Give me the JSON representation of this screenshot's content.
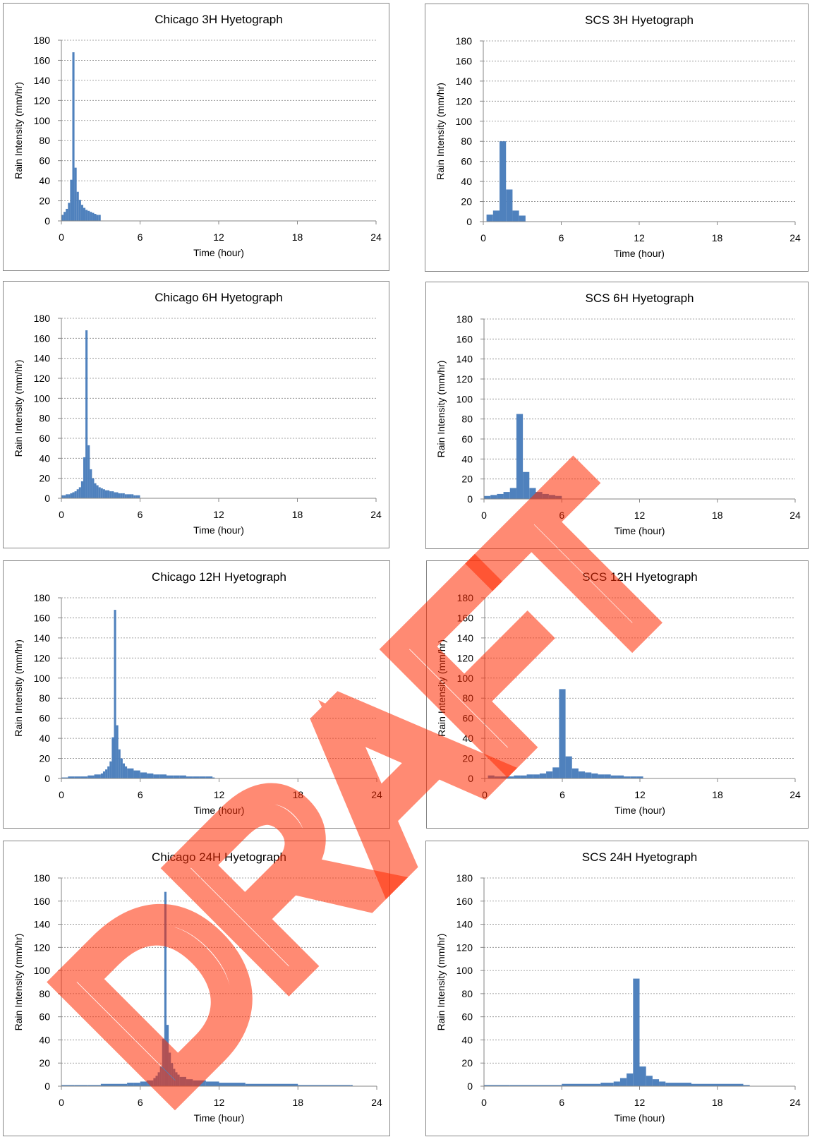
{
  "watermark": "DRAFT",
  "colors": {
    "bar": "#4F81BD",
    "grid": "#878787",
    "axis": "#868686",
    "watermark": "#ff2a00"
  },
  "chart_data": [
    {
      "type": "bar",
      "title": "Chicago 3H Hyetograph",
      "xlabel": "Time (hour)",
      "ylabel": "Rain Intensity (mm/hr)",
      "xlim": [
        0,
        24
      ],
      "ylim": [
        0,
        180
      ],
      "xticks": [
        0,
        6,
        12,
        18,
        24
      ],
      "yticks": [
        0,
        20,
        40,
        60,
        80,
        100,
        120,
        140,
        160,
        180
      ],
      "grid": "y-dashed",
      "step_hours": 0.1667,
      "x_start": [
        0,
        0.1667,
        0.3333,
        0.5,
        0.6667,
        0.8333,
        1.0,
        1.1667,
        1.3333,
        1.5,
        1.6667,
        1.8333,
        2.0,
        2.1667,
        2.3333,
        2.5,
        2.6667,
        2.8333
      ],
      "values": [
        6,
        9,
        12,
        18,
        41,
        168,
        53,
        29,
        21,
        16,
        13,
        11,
        10,
        9,
        8,
        7,
        6,
        6
      ]
    },
    {
      "type": "bar",
      "title": "SCS 3H Hyetograph",
      "xlabel": "Time (hour)",
      "ylabel": "Rain Intensity (mm/hr)",
      "xlim": [
        0,
        24
      ],
      "ylim": [
        0,
        180
      ],
      "xticks": [
        0,
        6,
        12,
        18,
        24
      ],
      "yticks": [
        0,
        20,
        40,
        60,
        80,
        100,
        120,
        140,
        160,
        180
      ],
      "grid": "y-dashed",
      "step_hours": 0.5,
      "x_start": [
        0.25,
        0.75,
        1.25,
        1.75,
        2.25,
        2.75
      ],
      "values": [
        7,
        11,
        80,
        32,
        11,
        6
      ]
    },
    {
      "type": "bar",
      "title": "Chicago 6H Hyetograph",
      "xlabel": "Time (hour)",
      "ylabel": "Rain Intensity (mm/hr)",
      "xlim": [
        0,
        24
      ],
      "ylim": [
        0,
        180
      ],
      "xticks": [
        0,
        6,
        12,
        18,
        24
      ],
      "yticks": [
        0,
        20,
        40,
        60,
        80,
        100,
        120,
        140,
        160,
        180
      ],
      "grid": "y-dashed",
      "step_hours": 0.1667,
      "x_start": [
        0,
        0.1667,
        0.3333,
        0.5,
        0.6667,
        0.8333,
        1.0,
        1.1667,
        1.3333,
        1.5,
        1.6667,
        1.8333,
        2.0,
        2.1667,
        2.3333,
        2.5,
        2.6667,
        2.8333,
        3.0,
        3.1667,
        3.3333,
        3.5,
        3.6667,
        3.8333,
        4.0,
        4.1667,
        4.3333,
        4.5,
        4.6667,
        4.8333,
        5.0,
        5.1667,
        5.3333,
        5.5,
        5.6667,
        5.8333
      ],
      "values": [
        3,
        3,
        4,
        4,
        5,
        6,
        7,
        9,
        11,
        17,
        41,
        168,
        53,
        29,
        20,
        15,
        13,
        11,
        10,
        9,
        8,
        8,
        7,
        7,
        6,
        6,
        5,
        5,
        5,
        4,
        4,
        4,
        4,
        3,
        3,
        3
      ]
    },
    {
      "type": "bar",
      "title": "SCS 6H Hyetograph",
      "xlabel": "Time (hour)",
      "ylabel": "Rain Intensity (mm/hr)",
      "xlim": [
        0,
        24
      ],
      "ylim": [
        0,
        180
      ],
      "xticks": [
        0,
        6,
        12,
        18,
        24
      ],
      "yticks": [
        0,
        20,
        40,
        60,
        80,
        100,
        120,
        140,
        160,
        180
      ],
      "grid": "y-dashed",
      "step_hours": 0.5,
      "x_start": [
        0,
        0.5,
        1.0,
        1.5,
        2.0,
        2.5,
        3.0,
        3.5,
        4.0,
        4.5,
        5.0,
        5.5
      ],
      "values": [
        3,
        4,
        5,
        7,
        11,
        85,
        27,
        11,
        7,
        5,
        4,
        3
      ]
    },
    {
      "type": "bar",
      "title": "Chicago 12H Hyetograph",
      "xlabel": "Time (hour)",
      "ylabel": "Rain Intensity (mm/hr)",
      "xlim": [
        0,
        24
      ],
      "ylim": [
        0,
        180
      ],
      "xticks": [
        0,
        6,
        12,
        18,
        24
      ],
      "yticks": [
        0,
        20,
        40,
        60,
        80,
        100,
        120,
        140,
        160,
        180
      ],
      "grid": "y-dashed",
      "step_hours": 0.1667,
      "x_start": [
        0,
        0.5,
        1.0,
        1.5,
        2.0,
        2.5,
        3.0,
        3.1667,
        3.3333,
        3.5,
        3.6667,
        3.8333,
        4.0,
        4.1667,
        4.3333,
        4.5,
        4.6667,
        4.8333,
        5.0,
        5.5,
        6.0,
        6.5,
        7.0,
        7.5,
        8.0,
        8.5,
        9.0,
        9.5,
        10.0,
        10.5,
        11.0,
        11.5
      ],
      "values": [
        1,
        2,
        2,
        2,
        3,
        4,
        5,
        7,
        9,
        12,
        17,
        41,
        168,
        53,
        29,
        20,
        15,
        12,
        10,
        8,
        6,
        5,
        4,
        4,
        3,
        3,
        3,
        2,
        2,
        2,
        2,
        1
      ]
    },
    {
      "type": "bar",
      "title": "SCS 12H Hyetograph",
      "xlabel": "Time (hour)",
      "ylabel": "Rain Intensity (mm/hr)",
      "xlim": [
        0,
        24
      ],
      "ylim": [
        0,
        180
      ],
      "xticks": [
        0,
        6,
        12,
        18,
        24
      ],
      "yticks": [
        0,
        20,
        40,
        60,
        80,
        100,
        120,
        140,
        160,
        180
      ],
      "grid": "y-dashed",
      "step_hours": 0.5,
      "x_start": [
        0.25,
        0.75,
        1.25,
        1.75,
        2.25,
        2.75,
        3.25,
        3.75,
        4.25,
        4.75,
        5.25,
        5.75,
        6.25,
        6.75,
        7.25,
        7.75,
        8.25,
        8.75,
        9.25,
        9.75,
        10.25,
        10.75,
        11.25,
        11.75
      ],
      "values": [
        3,
        2,
        2,
        2,
        3,
        3,
        4,
        4,
        5,
        7,
        11,
        89,
        22,
        10,
        7,
        6,
        5,
        4,
        4,
        3,
        3,
        2,
        2,
        2
      ]
    },
    {
      "type": "bar",
      "title": "Chicago 24H Hyetograph",
      "xlabel": "Time (hour)",
      "ylabel": "Rain Intensity (mm/hr)",
      "xlim": [
        0,
        24
      ],
      "ylim": [
        0,
        180
      ],
      "xticks": [
        0,
        6,
        12,
        18,
        24
      ],
      "yticks": [
        0,
        20,
        40,
        60,
        80,
        100,
        120,
        140,
        160,
        180
      ],
      "grid": "y-dashed",
      "step_hours": 0.1667,
      "x_start": [
        0,
        1,
        2,
        3,
        4,
        5,
        5.5,
        6,
        6.5,
        7.0,
        7.1667,
        7.3333,
        7.5,
        7.6667,
        7.8333,
        8.0,
        8.1667,
        8.3333,
        8.5,
        8.6667,
        8.8333,
        9.0,
        9.5,
        10,
        11,
        12,
        14,
        16,
        18,
        20,
        22
      ],
      "values": [
        1,
        1,
        1,
        2,
        2,
        3,
        3,
        4,
        5,
        7,
        9,
        12,
        17,
        41,
        168,
        53,
        29,
        20,
        15,
        12,
        10,
        8,
        6,
        5,
        4,
        3,
        2,
        2,
        1,
        1,
        1
      ]
    },
    {
      "type": "bar",
      "title": "SCS 24H Hyetograph",
      "xlabel": "Time (hour)",
      "ylabel": "Rain Intensity (mm/hr)",
      "xlim": [
        0,
        24
      ],
      "ylim": [
        0,
        180
      ],
      "xticks": [
        0,
        6,
        12,
        18,
        24
      ],
      "yticks": [
        0,
        20,
        40,
        60,
        80,
        100,
        120,
        140,
        160,
        180
      ],
      "grid": "y-dashed",
      "step_hours": 0.5,
      "x_start": [
        0,
        2,
        4,
        6,
        8,
        9,
        10,
        10.5,
        11.0,
        11.5,
        12.0,
        12.5,
        13.0,
        13.5,
        14.0,
        16.0,
        20.0
      ],
      "values": [
        1,
        1,
        1,
        2,
        2,
        3,
        4,
        7,
        11,
        93,
        17,
        9,
        6,
        4,
        3,
        2,
        1
      ]
    }
  ]
}
